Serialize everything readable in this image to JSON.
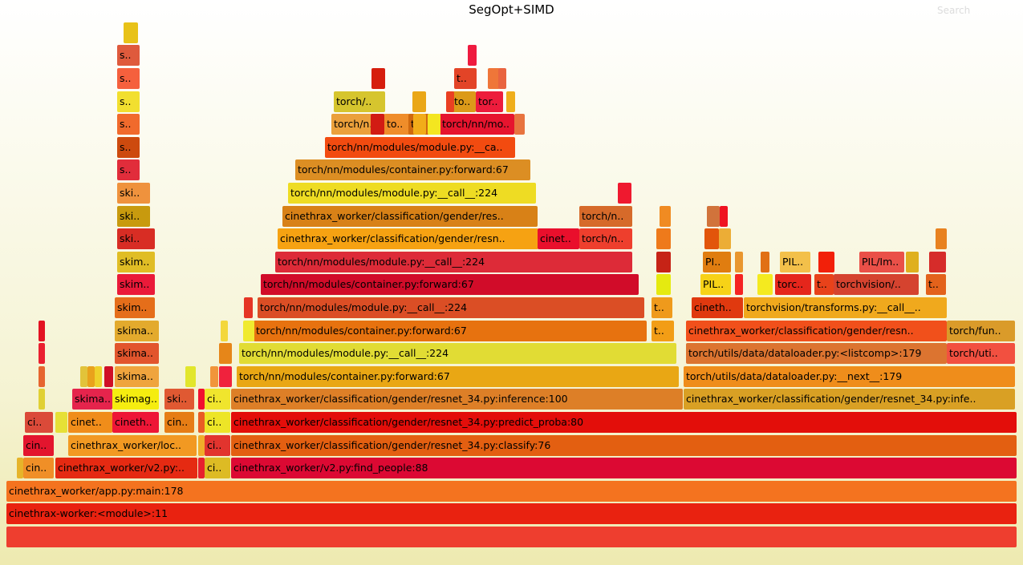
{
  "title": "SegOpt+SIMD",
  "search_label": "Search",
  "frames": [
    {
      "l": "",
      "c": "#ee3e2f"
    },
    {
      "l": "cinethrax-worker:<module>:11",
      "c": "#e92210"
    },
    {
      "l": "cinethrax_worker/app.py:main:178",
      "c": "#f4731f"
    },
    {
      "l": "cin..",
      "c": "#f08f27"
    },
    {
      "l": "cinethrax_worker/v2.py:..",
      "c": "#e52a12"
    },
    {
      "l": "ci..",
      "c": "#ddbb24"
    },
    {
      "l": "cinethrax_worker/v2.py:find_people:88",
      "c": "#dc0933"
    },
    {
      "l": "cin..",
      "c": "#e3152e"
    },
    {
      "l": "cinethrax_worker/loc..",
      "c": "#f29922"
    },
    {
      "l": "ci..",
      "c": "#e2342e"
    },
    {
      "l": "cinethrax_worker/classification/gender/resnet_34.py:classify:76",
      "c": "#e35f11"
    },
    {
      "l": "ci..",
      "c": "#db4a39"
    },
    {
      "l": "cinet..",
      "c": "#f08d1a"
    },
    {
      "l": "cineth..",
      "c": "#ee1636"
    },
    {
      "l": "cin..",
      "c": "#e67d15"
    },
    {
      "l": "ci..",
      "c": "#ede527"
    },
    {
      "l": "cinethrax_worker/classification/gender/resnet_34.py:predict_proba:80",
      "c": "#e30e0a"
    },
    {
      "l": "skima..",
      "c": "#e5244c"
    },
    {
      "l": "skimag..",
      "c": "#f5ed10"
    },
    {
      "l": "ski..",
      "c": "#e05932"
    },
    {
      "l": "ci..",
      "c": "#f0e52d"
    },
    {
      "l": "cinethrax_worker/classification/gender/resnet_34.py:inference:100",
      "c": "#dd7f27"
    },
    {
      "l": "cinethrax_worker/classification/gender/resnet_34.py:infe..",
      "c": "#d9a024"
    },
    {
      "l": "skima..",
      "c": "#efa43d"
    },
    {
      "l": "torch/nn/modules/container.py:forward:67",
      "c": "#e9a714"
    },
    {
      "l": "torch/utils/data/dataloader.py:__next__:179",
      "c": "#ef8d1b"
    },
    {
      "l": "skima..",
      "c": "#e2552d"
    },
    {
      "l": "torch/nn/modules/module.py:__call__:224",
      "c": "#e1dc34"
    },
    {
      "l": "torch/utils/data/dataloader.py:<listcomp>:179",
      "c": "#dc7430"
    },
    {
      "l": "torch/uti..",
      "c": "#f25040"
    },
    {
      "l": "skima..",
      "c": "#e3aa2d"
    },
    {
      "l": "torch/nn/modules/container.py:forward:67",
      "c": "#e7720f"
    },
    {
      "l": "t..",
      "c": "#f29d16"
    },
    {
      "l": "cinethrax_worker/classification/gender/resn..",
      "c": "#f1501b"
    },
    {
      "l": "torch/fun..",
      "c": "#da9b2a"
    },
    {
      "l": "skim..",
      "c": "#e56e1a"
    },
    {
      "l": "torch/nn/modules/module.py:__call__:224",
      "c": "#db4e25"
    },
    {
      "l": "t..",
      "c": "#ef9a1c"
    },
    {
      "l": "cineth..",
      "c": "#e0390f"
    },
    {
      "l": "torchvision/transforms.py:__call__..",
      "c": "#f0a91d"
    },
    {
      "l": "skim..",
      "c": "#ea1a39"
    },
    {
      "l": "torch/nn/modules/container.py:forward:67",
      "c": "#d10c29"
    },
    {
      "l": "PIL..",
      "c": "#f7d217"
    },
    {
      "l": "torc..",
      "c": "#e5261c"
    },
    {
      "l": "t..",
      "c": "#e8421a"
    },
    {
      "l": "torchvision/..",
      "c": "#d5432f"
    },
    {
      "l": "t..",
      "c": "#e3621b"
    },
    {
      "l": "skim..",
      "c": "#e0bd25"
    },
    {
      "l": "torch/nn/modules/module.py:__call__:224",
      "c": "#dd2b38"
    },
    {
      "l": "PI..",
      "c": "#e07d10"
    },
    {
      "l": "PIL..",
      "c": "#f3c04a"
    },
    {
      "l": "PIL/Im..",
      "c": "#ea5048"
    },
    {
      "l": "ski..",
      "c": "#d82d24"
    },
    {
      "l": "cinethrax_worker/classification/gender/resn..",
      "c": "#f6a212"
    },
    {
      "l": "cinet..",
      "c": "#e90f2c"
    },
    {
      "l": "torch/n..",
      "c": "#ee3f2d"
    },
    {
      "l": "ski..",
      "c": "#c89a0e"
    },
    {
      "l": "cinethrax_worker/classification/gender/res..",
      "c": "#d88117"
    },
    {
      "l": "torch/n..",
      "c": "#d66a2a"
    },
    {
      "l": "ski..",
      "c": "#ef923d"
    },
    {
      "l": "torch/nn/modules/module.py:__call__:224",
      "c": "#eedc23"
    },
    {
      "l": "s..",
      "c": "#e12d3b"
    },
    {
      "l": "torch/nn/modules/container.py:forward:67",
      "c": "#dc8e23"
    },
    {
      "l": "s..",
      "c": "#cd4a0e"
    },
    {
      "l": "torch/nn/modules/module.py:__ca..",
      "c": "#f24b10"
    },
    {
      "l": "s..",
      "c": "#f16a2c"
    },
    {
      "l": "torch/n..",
      "c": "#eba03b"
    },
    {
      "l": "to..",
      "c": "#ef8d2a"
    },
    {
      "l": "t..",
      "c": "#d0690f"
    },
    {
      "l": "torch/nn/mo..",
      "c": "#e6142e"
    },
    {
      "l": "s..",
      "c": "#f2df2f"
    },
    {
      "l": "torch/..",
      "c": "#d6c52e"
    },
    {
      "l": "to..",
      "c": "#dc9a19"
    },
    {
      "l": "tor..",
      "c": "#ed1c3c"
    },
    {
      "l": "s..",
      "c": "#f5603d"
    },
    {
      "l": "t..",
      "c": "#e34427"
    },
    {
      "l": "s..",
      "c": "#df5a3c"
    }
  ]
}
